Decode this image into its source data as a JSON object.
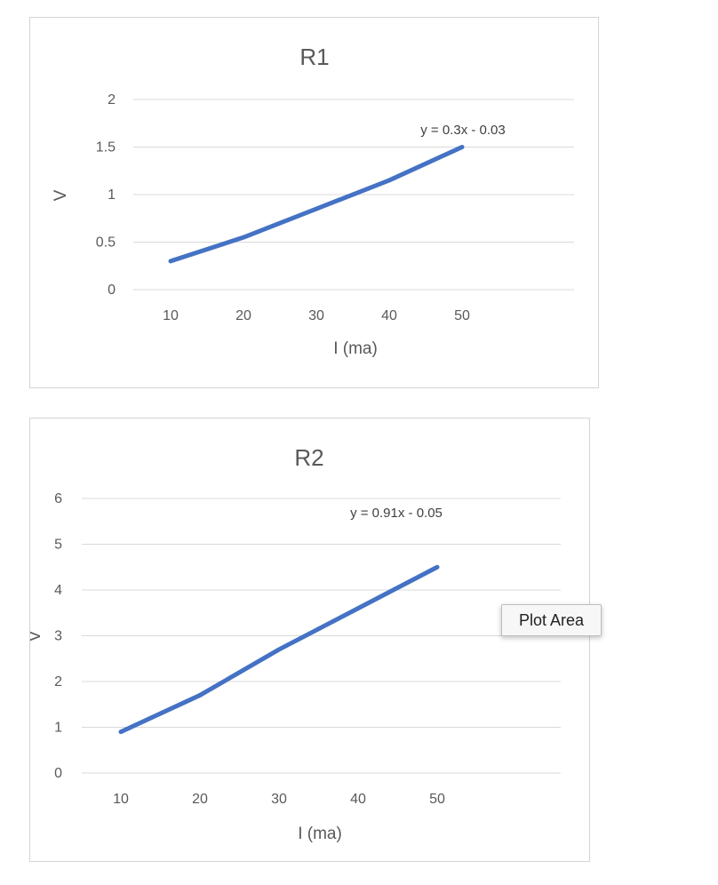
{
  "chart_data": [
    {
      "type": "line",
      "title": "R1",
      "xlabel": "I (ma)",
      "ylabel": "V",
      "x": [
        10,
        20,
        30,
        40,
        50
      ],
      "x_ticks": [
        "10",
        "20",
        "30",
        "40",
        "50"
      ],
      "y_ticks": [
        "0",
        "0.5",
        "1",
        "1.5",
        "2"
      ],
      "ylim": [
        0,
        2
      ],
      "grid": true,
      "series": [
        {
          "values": [
            0.3,
            0.55,
            0.85,
            1.15,
            1.5
          ],
          "color": "#4472C4"
        }
      ],
      "trendline_label": "y = 0.3x - 0.03"
    },
    {
      "type": "line",
      "title": "R2",
      "xlabel": "I (ma)",
      "ylabel": "V",
      "x": [
        10,
        20,
        30,
        40,
        50
      ],
      "x_ticks": [
        "10",
        "20",
        "30",
        "40",
        "50"
      ],
      "y_ticks": [
        "0",
        "1",
        "2",
        "3",
        "4",
        "5",
        "6"
      ],
      "ylim": [
        0,
        6
      ],
      "grid": true,
      "series": [
        {
          "values": [
            0.9,
            1.7,
            2.7,
            3.6,
            4.5
          ],
          "color": "#4472C4"
        }
      ],
      "trendline_label": "y = 0.91x - 0.05"
    }
  ],
  "tooltip": {
    "label": "Plot Area"
  },
  "colors": {
    "series": "#4472C4",
    "gridline": "#d9d9d9",
    "text": "#595959",
    "frame": "#d4d4d4"
  }
}
